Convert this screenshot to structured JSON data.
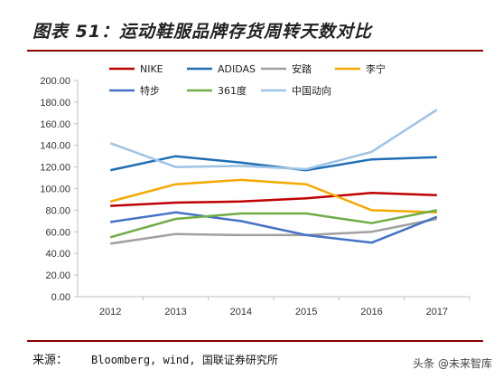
{
  "title": "图表 51：运动鞋服品牌存货周转天数对比",
  "source": {
    "label": "来源：",
    "text": "Bloomberg, wind, 国联证券研究所"
  },
  "watermark": "头条 @未来智库",
  "chart_data": {
    "type": "line",
    "x": [
      "2012",
      "2013",
      "2014",
      "2015",
      "2016",
      "2017"
    ],
    "ylim": [
      0,
      200
    ],
    "yticks": [
      "0.00",
      "20.00",
      "40.00",
      "60.00",
      "80.00",
      "100.00",
      "120.00",
      "140.00",
      "160.00",
      "180.00",
      "200.00"
    ],
    "grid": false,
    "legend_position": "top",
    "series": [
      {
        "name": "NIKE",
        "color": "#c00000",
        "values": [
          84,
          87,
          88,
          91,
          96,
          94
        ]
      },
      {
        "name": "ADIDAS",
        "color": "#1f6eb4",
        "values": [
          117,
          130,
          124,
          117,
          127,
          129
        ]
      },
      {
        "name": "安踏",
        "color": "#a0a0a0",
        "values": [
          49,
          58,
          57,
          57,
          60,
          72
        ]
      },
      {
        "name": "李宁",
        "color": "#f5a800",
        "values": [
          88,
          104,
          108,
          104,
          80,
          78
        ]
      },
      {
        "name": "特步",
        "color": "#4472c4",
        "values": [
          69,
          78,
          70,
          57,
          50,
          74
        ]
      },
      {
        "name": "361度",
        "color": "#70ad47",
        "values": [
          55,
          72,
          77,
          77,
          68,
          80
        ]
      },
      {
        "name": "中国动向",
        "color": "#9dc3e6",
        "values": [
          142,
          120,
          121,
          118,
          134,
          173
        ]
      }
    ]
  }
}
